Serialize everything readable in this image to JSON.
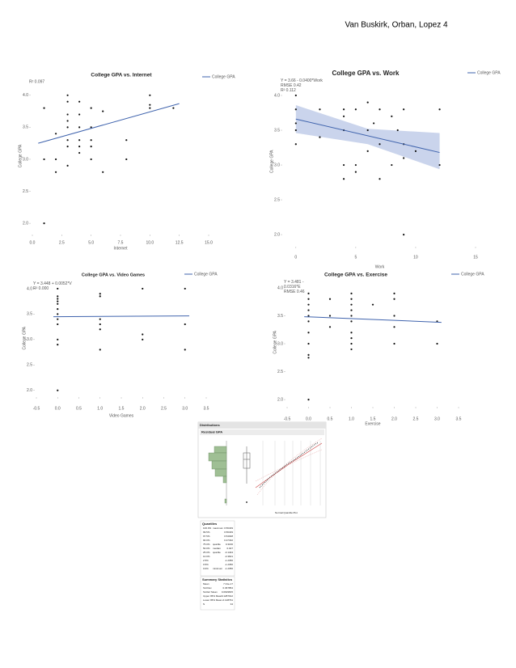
{
  "header": {
    "text": "Van Buskirk, Orban, Lopez 4"
  },
  "chart_data": [
    {
      "type": "scatter",
      "title": "College GPA vs. Internet",
      "x_label": "Internet",
      "y_label": "College GPA",
      "annotations": [
        "R² 0.097"
      ],
      "xlim": [
        0,
        15
      ],
      "ylim": [
        1.85,
        4.25
      ],
      "xticks": [
        {
          "value": 0,
          "label": "0.0"
        },
        2.5,
        {
          "value": 5,
          "label": "5.0"
        },
        7.5,
        {
          "value": 10,
          "label": "10.0"
        },
        12.5,
        {
          "value": 15,
          "label": "15.0"
        }
      ],
      "yticks": [
        {
          "value": 2,
          "label": "2.0"
        },
        2.5,
        {
          "value": 3,
          "label": "3.0"
        },
        3.5,
        {
          "value": 4,
          "label": "4.0"
        }
      ],
      "points": {
        "color": "#111111",
        "x": [
          1,
          1,
          1,
          2,
          2,
          2,
          3,
          3,
          3,
          3,
          3,
          3,
          3,
          3,
          4,
          4,
          4,
          4,
          4,
          4,
          5,
          5,
          5,
          5,
          5,
          6,
          6,
          8,
          8,
          10,
          10,
          10,
          12
        ],
        "y": [
          3.8,
          3,
          2,
          3,
          2.8,
          3.4,
          4,
          3.9,
          3.6,
          3.5,
          3.3,
          3.2,
          2.9,
          3.7,
          3.7,
          3.9,
          3.5,
          3.3,
          3.2,
          3.1,
          3.8,
          3.5,
          3.3,
          3.2,
          3,
          3.75,
          2.8,
          3.3,
          3,
          4,
          3.85,
          3.8,
          3.8
        ]
      },
      "series": [
        {
          "name": "College GPA",
          "color": "#3f63ad",
          "x": [
            0.5,
            12.5
          ],
          "values": [
            3.25,
            3.87
          ]
        }
      ]
    },
    {
      "type": "scatter",
      "title": "College GPA vs. Work",
      "x_label": "Work",
      "y_label": "College GPA",
      "annotations": [
        "Y = 3.66 - 0.0400*Work",
        "RMSE 0.42",
        "R² 0.112"
      ],
      "xlim": [
        -1,
        15
      ],
      "ylim": [
        1.85,
        4.25
      ],
      "xticks": [
        0,
        5,
        10,
        15
      ],
      "yticks": [
        {
          "value": 2,
          "label": "2.0"
        },
        2.5,
        {
          "value": 3,
          "label": "3.0"
        },
        3.5,
        {
          "value": 4,
          "label": "4.0"
        }
      ],
      "points": {
        "color": "#111111",
        "x": [
          0,
          0,
          0,
          0,
          0,
          2,
          2,
          4,
          4,
          4,
          4,
          4,
          5,
          5,
          5,
          6,
          6,
          6,
          6.5,
          7,
          7,
          7,
          8,
          8,
          8.5,
          9,
          9,
          9,
          9,
          10,
          12,
          12
        ],
        "y": [
          4,
          3.8,
          3.6,
          3.5,
          3.3,
          3.8,
          3.4,
          3.8,
          3.7,
          3.5,
          3,
          2.8,
          3.8,
          3,
          2.9,
          3.9,
          3.5,
          3.2,
          3.6,
          3.8,
          3.3,
          2.8,
          3.7,
          3,
          3.5,
          3.8,
          3.3,
          3.1,
          2,
          3.2,
          3.8,
          3
        ]
      },
      "band": {
        "color": "#b8c6e6",
        "x": [
          0,
          6,
          12
        ],
        "lower": [
          3.46,
          3.3,
          2.94
        ],
        "upper": [
          3.86,
          3.52,
          3.46
        ]
      },
      "series": [
        {
          "name": "College GPA",
          "color": "#3f63ad",
          "x": [
            0,
            12
          ],
          "values": [
            3.66,
            3.18
          ]
        }
      ]
    },
    {
      "type": "scatter",
      "title": "College GPA vs. Video Games",
      "x_label": "Video Games",
      "y_label": "College GPA",
      "annotations": [
        "Y = 3.448 + 0.0052*V",
        "R² 0.000"
      ],
      "xlim": [
        -0.5,
        3.5
      ],
      "ylim": [
        1.9,
        4.15
      ],
      "xticks": [
        -0.5,
        {
          "value": 0,
          "label": "0.0"
        },
        0.5,
        {
          "value": 1,
          "label": "1.0"
        },
        1.5,
        {
          "value": 2,
          "label": "2.0"
        },
        2.5,
        {
          "value": 3,
          "label": "3.0"
        },
        3.5
      ],
      "yticks": [
        {
          "value": 2,
          "label": "2.0"
        },
        2.5,
        {
          "value": 3,
          "label": "3.0"
        },
        3.5,
        {
          "value": 4,
          "label": "4.0"
        }
      ],
      "points": {
        "color": "#111111",
        "x": [
          0,
          0,
          0,
          0,
          0,
          0,
          0,
          0,
          0,
          0,
          0,
          0,
          1,
          1,
          1,
          1,
          1,
          1,
          2,
          2,
          2,
          3,
          3,
          3
        ],
        "y": [
          4,
          3.85,
          3.8,
          3.75,
          3.7,
          3.6,
          3.5,
          3.4,
          3.3,
          3,
          2.9,
          2,
          3.9,
          3.85,
          3.4,
          3.3,
          3.2,
          2.8,
          4,
          3.1,
          3,
          4,
          3.3,
          2.8
        ]
      },
      "series": [
        {
          "name": "College GPA",
          "color": "#3f63ad",
          "x": [
            -0.1,
            3.1
          ],
          "values": [
            3.448,
            3.464
          ]
        }
      ]
    },
    {
      "type": "scatter",
      "title": "College GPA vs. Exercise",
      "x_label": "Exercise",
      "y_label": "College GPA",
      "annotations": [
        "Y = 3.481 -",
        "0.0316*E",
        "RMSE 0.46"
      ],
      "xlim": [
        -0.5,
        3.5
      ],
      "ylim": [
        1.9,
        4.15
      ],
      "xticks": [
        -0.5,
        {
          "value": 0,
          "label": "0.0"
        },
        0.5,
        {
          "value": 1,
          "label": "1.0"
        },
        1.5,
        {
          "value": 2,
          "label": "2.0"
        },
        2.5,
        {
          "value": 3,
          "label": "3.0"
        },
        3.5
      ],
      "yticks": [
        {
          "value": 2,
          "label": "2.0"
        },
        2.5,
        {
          "value": 3,
          "label": "3.0"
        },
        3.5,
        {
          "value": 4,
          "label": "4.0"
        }
      ],
      "points": {
        "color": "#111111",
        "x": [
          0,
          0,
          0,
          0,
          0,
          0,
          0,
          0,
          0,
          0,
          0,
          0.5,
          0.5,
          0.5,
          1,
          1,
          1,
          1,
          1,
          1,
          1,
          1,
          1,
          1,
          1.5,
          2,
          2,
          2,
          2,
          2,
          3,
          3
        ],
        "y": [
          3.9,
          3.8,
          3.7,
          3.6,
          3.5,
          3.4,
          3.2,
          3,
          2.8,
          2.75,
          2,
          3.8,
          3.5,
          3.3,
          3.9,
          3.8,
          3.7,
          3.6,
          3.5,
          3.4,
          3.2,
          3.1,
          3,
          2.9,
          3.7,
          3.9,
          3.8,
          3.5,
          3.3,
          3,
          3,
          3.4
        ]
      },
      "series": [
        {
          "name": "College GPA",
          "color": "#3f63ad",
          "x": [
            -0.1,
            3.1
          ],
          "values": [
            3.484,
            3.383
          ]
        }
      ]
    }
  ],
  "distribution": {
    "title": "Distributions",
    "variable": "Residual GPA",
    "plot_axis": "Normal Quantile Plot",
    "quantiles_title": "Quantiles",
    "quantiles": [
      {
        "pct": "100.0%",
        "label": "maximum",
        "value": "0.56349"
      },
      {
        "pct": "99.5%",
        "value": "0.56349"
      },
      {
        "pct": "97.5%",
        "value": "0.54948"
      },
      {
        "pct": "90.0%",
        "value": "0.47332"
      },
      {
        "pct": "75.0%",
        "label": "quartile",
        "value": "0.3166"
      },
      {
        "pct": "50.0%",
        "label": "median",
        "value": "0.027"
      },
      {
        "pct": "25.0%",
        "label": "quartile",
        "value": "-0.1404"
      },
      {
        "pct": "10.0%",
        "value": "-0.3601"
      },
      {
        "pct": "2.5%",
        "value": "-1.2356"
      },
      {
        "pct": "0.5%",
        "value": "-1.2356"
      },
      {
        "pct": "0.0%",
        "label": "minimum",
        "value": "-1.2356"
      }
    ],
    "summary_title": "Summary Statistics",
    "summary": [
      {
        "label": "Mean",
        "value": "7.31e-17"
      },
      {
        "label": "Std Dev",
        "value": "0.367854"
      },
      {
        "label": "Std Err Mean",
        "value": "0.0629815"
      },
      {
        "label": "Upper 95% Mean",
        "value": "0.1287912"
      },
      {
        "label": "Lower 95% Mean",
        "value": "-0.128791"
      },
      {
        "label": "N",
        "value": "34"
      }
    ]
  }
}
